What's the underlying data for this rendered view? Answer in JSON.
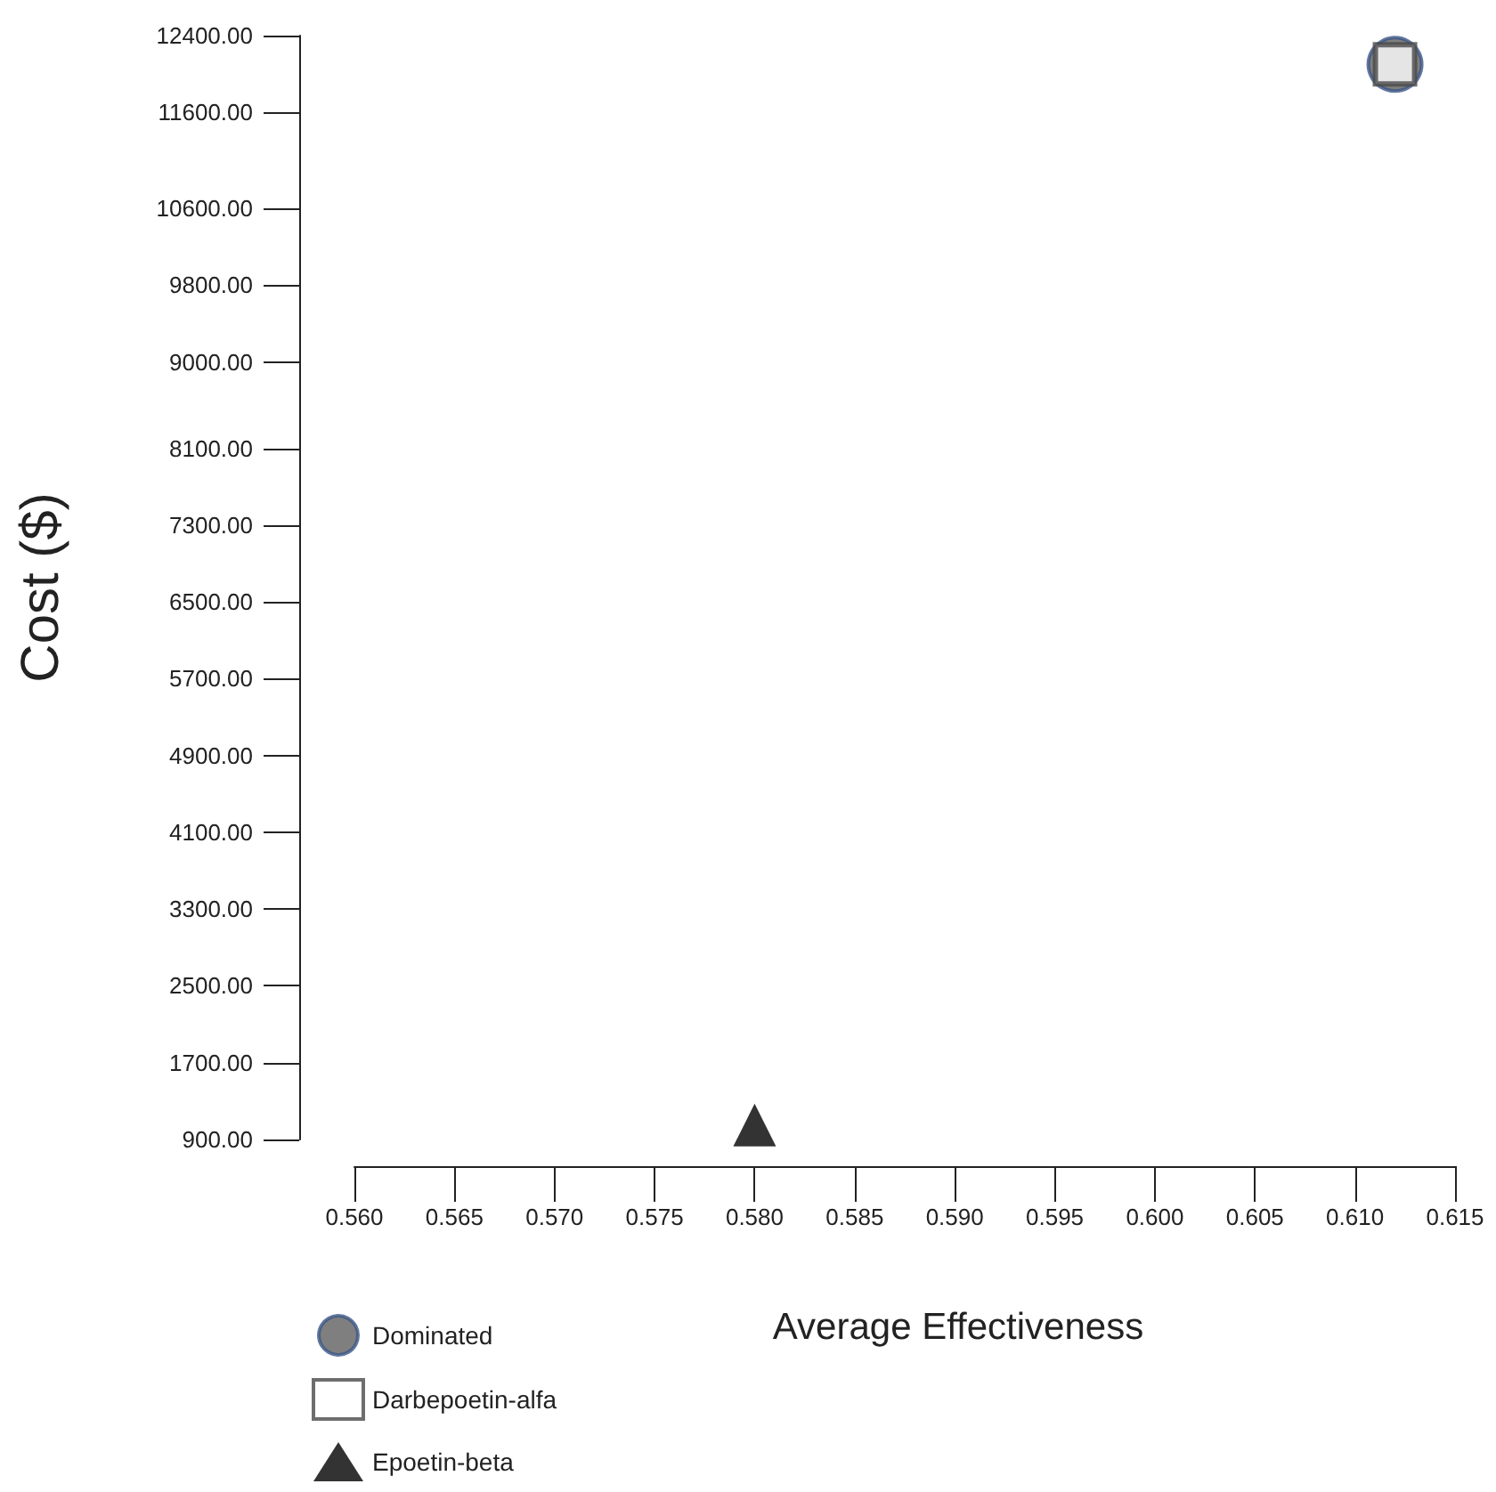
{
  "chart_data": {
    "type": "scatter",
    "xlabel": "Average Effectiveness",
    "ylabel": "Cost ($)",
    "xlim": [
      0.56,
      0.615
    ],
    "xticks": [
      {
        "value": 0.56,
        "label": "0.560"
      },
      {
        "value": 0.565,
        "label": "0.565"
      },
      {
        "value": 0.57,
        "label": "0.570"
      },
      {
        "value": 0.575,
        "label": "0.575"
      },
      {
        "value": 0.58,
        "label": "0.580"
      },
      {
        "value": 0.585,
        "label": "0.585"
      },
      {
        "value": 0.59,
        "label": "0.590"
      },
      {
        "value": 0.595,
        "label": "0.595"
      },
      {
        "value": 0.6,
        "label": "0.600"
      },
      {
        "value": 0.605,
        "label": "0.605"
      },
      {
        "value": 0.61,
        "label": "0.610"
      },
      {
        "value": 0.615,
        "label": "0.615"
      }
    ],
    "ylim": [
      900,
      12400
    ],
    "yticks": [
      {
        "value": 900,
        "label": "900.00"
      },
      {
        "value": 1700,
        "label": "1700.00"
      },
      {
        "value": 2500,
        "label": "2500.00"
      },
      {
        "value": 3300,
        "label": "3300.00"
      },
      {
        "value": 4100,
        "label": "4100.00"
      },
      {
        "value": 4900,
        "label": "4900.00"
      },
      {
        "value": 5700,
        "label": "5700.00"
      },
      {
        "value": 6500,
        "label": "6500.00"
      },
      {
        "value": 7300,
        "label": "7300.00"
      },
      {
        "value": 8100,
        "label": "8100.00"
      },
      {
        "value": 9000,
        "label": "9000.00"
      },
      {
        "value": 9800,
        "label": "9800.00"
      },
      {
        "value": 10600,
        "label": "10600.00"
      },
      {
        "value": 11600,
        "label": "11600.00"
      },
      {
        "value": 12400,
        "label": "12400.00"
      }
    ],
    "grid": false,
    "legend": "bottom left",
    "x": [
      0.58,
      0.612
    ],
    "series": [
      {
        "name": "Dominated",
        "color": "#5f5f5f",
        "marker": "circle",
        "values": [
          null,
          12100
        ]
      },
      {
        "name": "Darbepoetin-alfa",
        "color": "#4a4a4a",
        "marker": "square",
        "values": [
          null,
          12100
        ]
      },
      {
        "name": "Epoetin-beta",
        "color": "#000000",
        "marker": "triangle",
        "values": [
          1050,
          null
        ]
      }
    ]
  }
}
